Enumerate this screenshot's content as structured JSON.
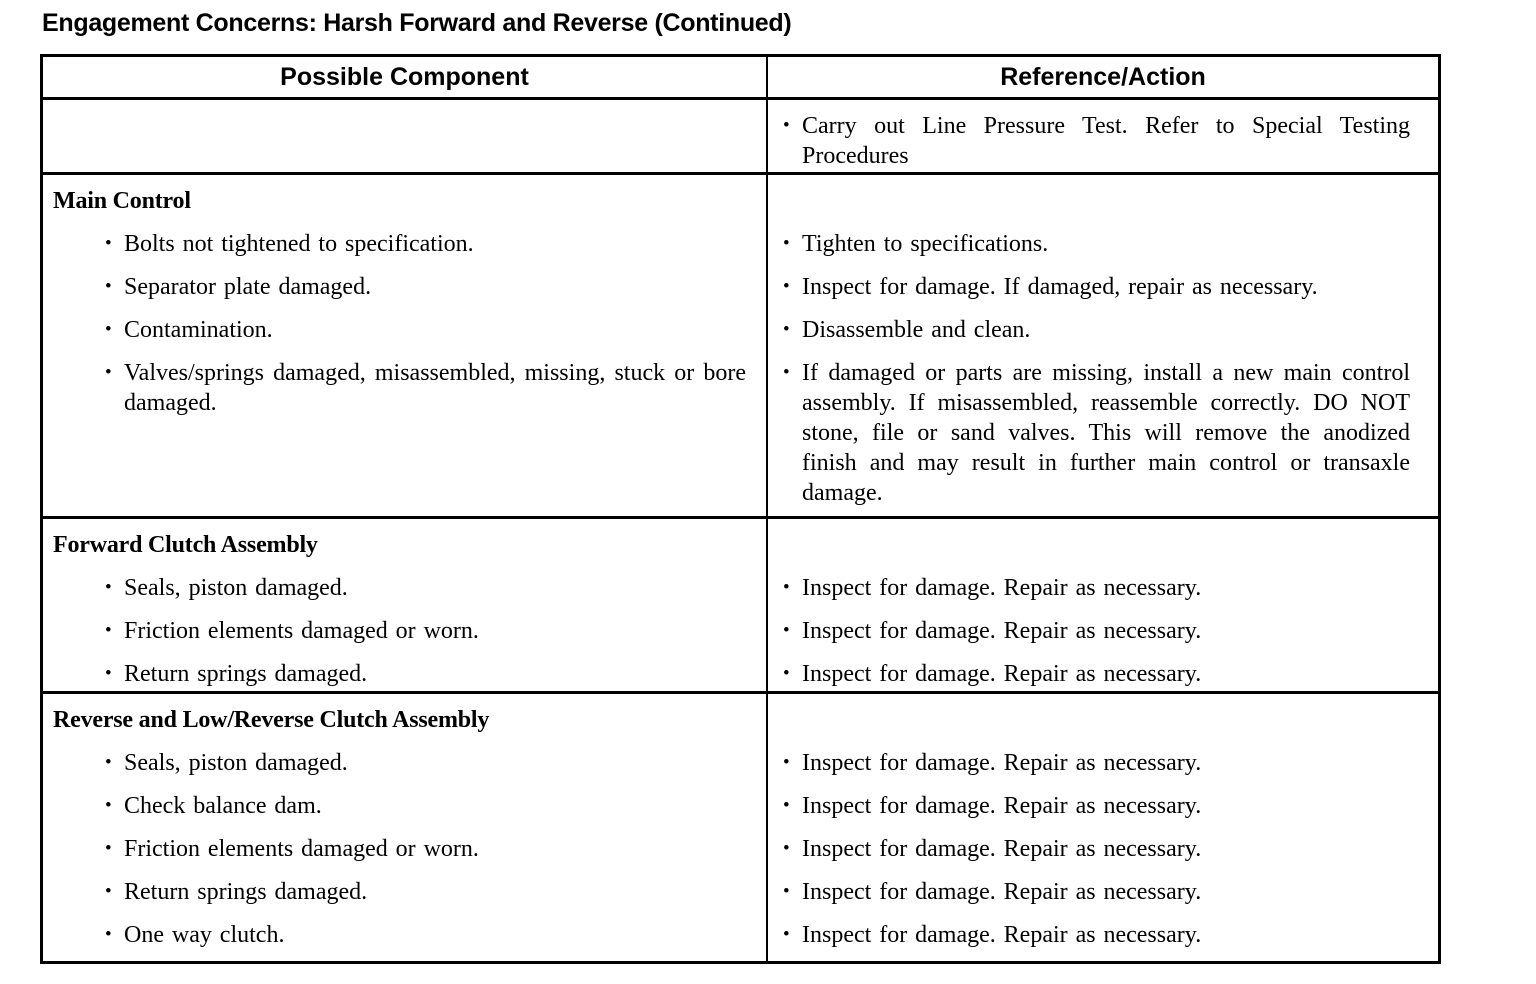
{
  "page": {
    "title": "Engagement Concerns: Harsh Forward and Reverse (Continued)"
  },
  "table": {
    "headers": [
      "Possible Component",
      "Reference/Action"
    ],
    "bullet_char": "•",
    "rows": [
      {
        "component_title": "",
        "component_items": [],
        "actions": [
          "Carry out Line Pressure Test. Refer to Special Testing Procedures"
        ]
      },
      {
        "component_title": "Main Control",
        "component_items": [
          "Bolts not tightened to specification.",
          "Separator plate damaged.",
          "Contamination.",
          "Valves/springs damaged, misassembled, missing, stuck or bore damaged."
        ],
        "actions": [
          "Tighten to specifications.",
          "Inspect for damage. If damaged, repair as necessary.",
          "Disassemble and clean.",
          "If damaged or parts are missing, install a new main control assembly. If misassembled, reassemble correctly. DO NOT stone, file or sand valves. This will remove the anodized finish and may result in further main control or transaxle damage."
        ]
      },
      {
        "component_title": "Forward Clutch Assembly",
        "component_items": [
          "Seals, piston damaged.",
          "Friction elements damaged or worn.",
          "Return springs damaged."
        ],
        "actions": [
          "Inspect for damage. Repair as necessary.",
          "Inspect for damage. Repair as necessary.",
          "Inspect for damage. Repair as necessary."
        ]
      },
      {
        "component_title": "Reverse and Low/Reverse Clutch Assembly",
        "component_items": [
          "Seals, piston damaged.",
          "Check balance dam.",
          "Friction elements damaged or worn.",
          "Return springs damaged.",
          "One way clutch."
        ],
        "actions": [
          "Inspect for damage. Repair as necessary.",
          "Inspect for damage. Repair as necessary.",
          "Inspect for damage. Repair as necessary.",
          "Inspect for damage. Repair as necessary.",
          "Inspect for damage. Repair as necessary."
        ]
      }
    ]
  },
  "colors": {
    "text": "#000000",
    "border": "#000000",
    "background": "#ffffff"
  }
}
